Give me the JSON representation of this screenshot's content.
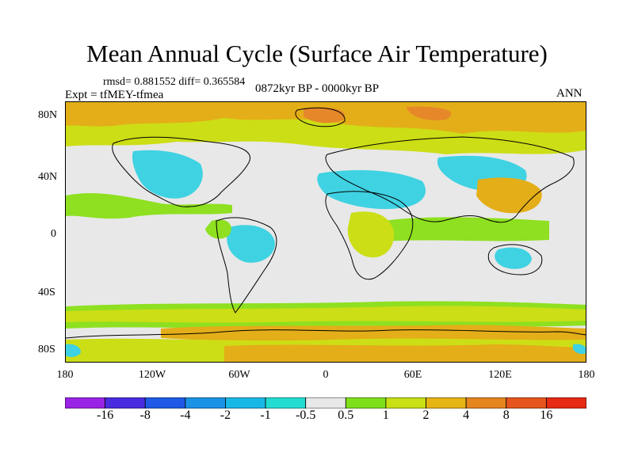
{
  "title": "Mean Annual Cycle (Surface Air Temperature)",
  "stats_text": "rmsd= 0.881552 diff= 0.365584",
  "expt_text": "Expt = tfMEY-tfmea",
  "period_text": "0872kyr BP - 0000kyr BP",
  "season_text": "ANN",
  "y_ticks": [
    "80N",
    "40N",
    "0",
    "40S",
    "80S"
  ],
  "x_ticks": [
    "180",
    "120W",
    "60W",
    "0",
    "60E",
    "120E",
    "180"
  ],
  "colorbar": {
    "labels": [
      "-16",
      "-8",
      "-4",
      "-2",
      "-1",
      "-0.5",
      "0.5",
      "1",
      "2",
      "4",
      "8",
      "16"
    ],
    "colors": [
      "#9a24e6",
      "#4a2ce0",
      "#1e5ae6",
      "#1a92e6",
      "#18b8e6",
      "#22dcd2",
      "#e8e8e8",
      "#7ee01a",
      "#c8e014",
      "#e6b414",
      "#e6841e",
      "#e6551e",
      "#e62a14"
    ]
  },
  "colors": {
    "neutral": "#e8e8e8",
    "cool": "#3fd2e2",
    "green": "#8ee020",
    "yellow": "#ccde16",
    "orange": "#e4ae18",
    "dark_orange": "#e6882a",
    "coast": "#000000"
  }
}
